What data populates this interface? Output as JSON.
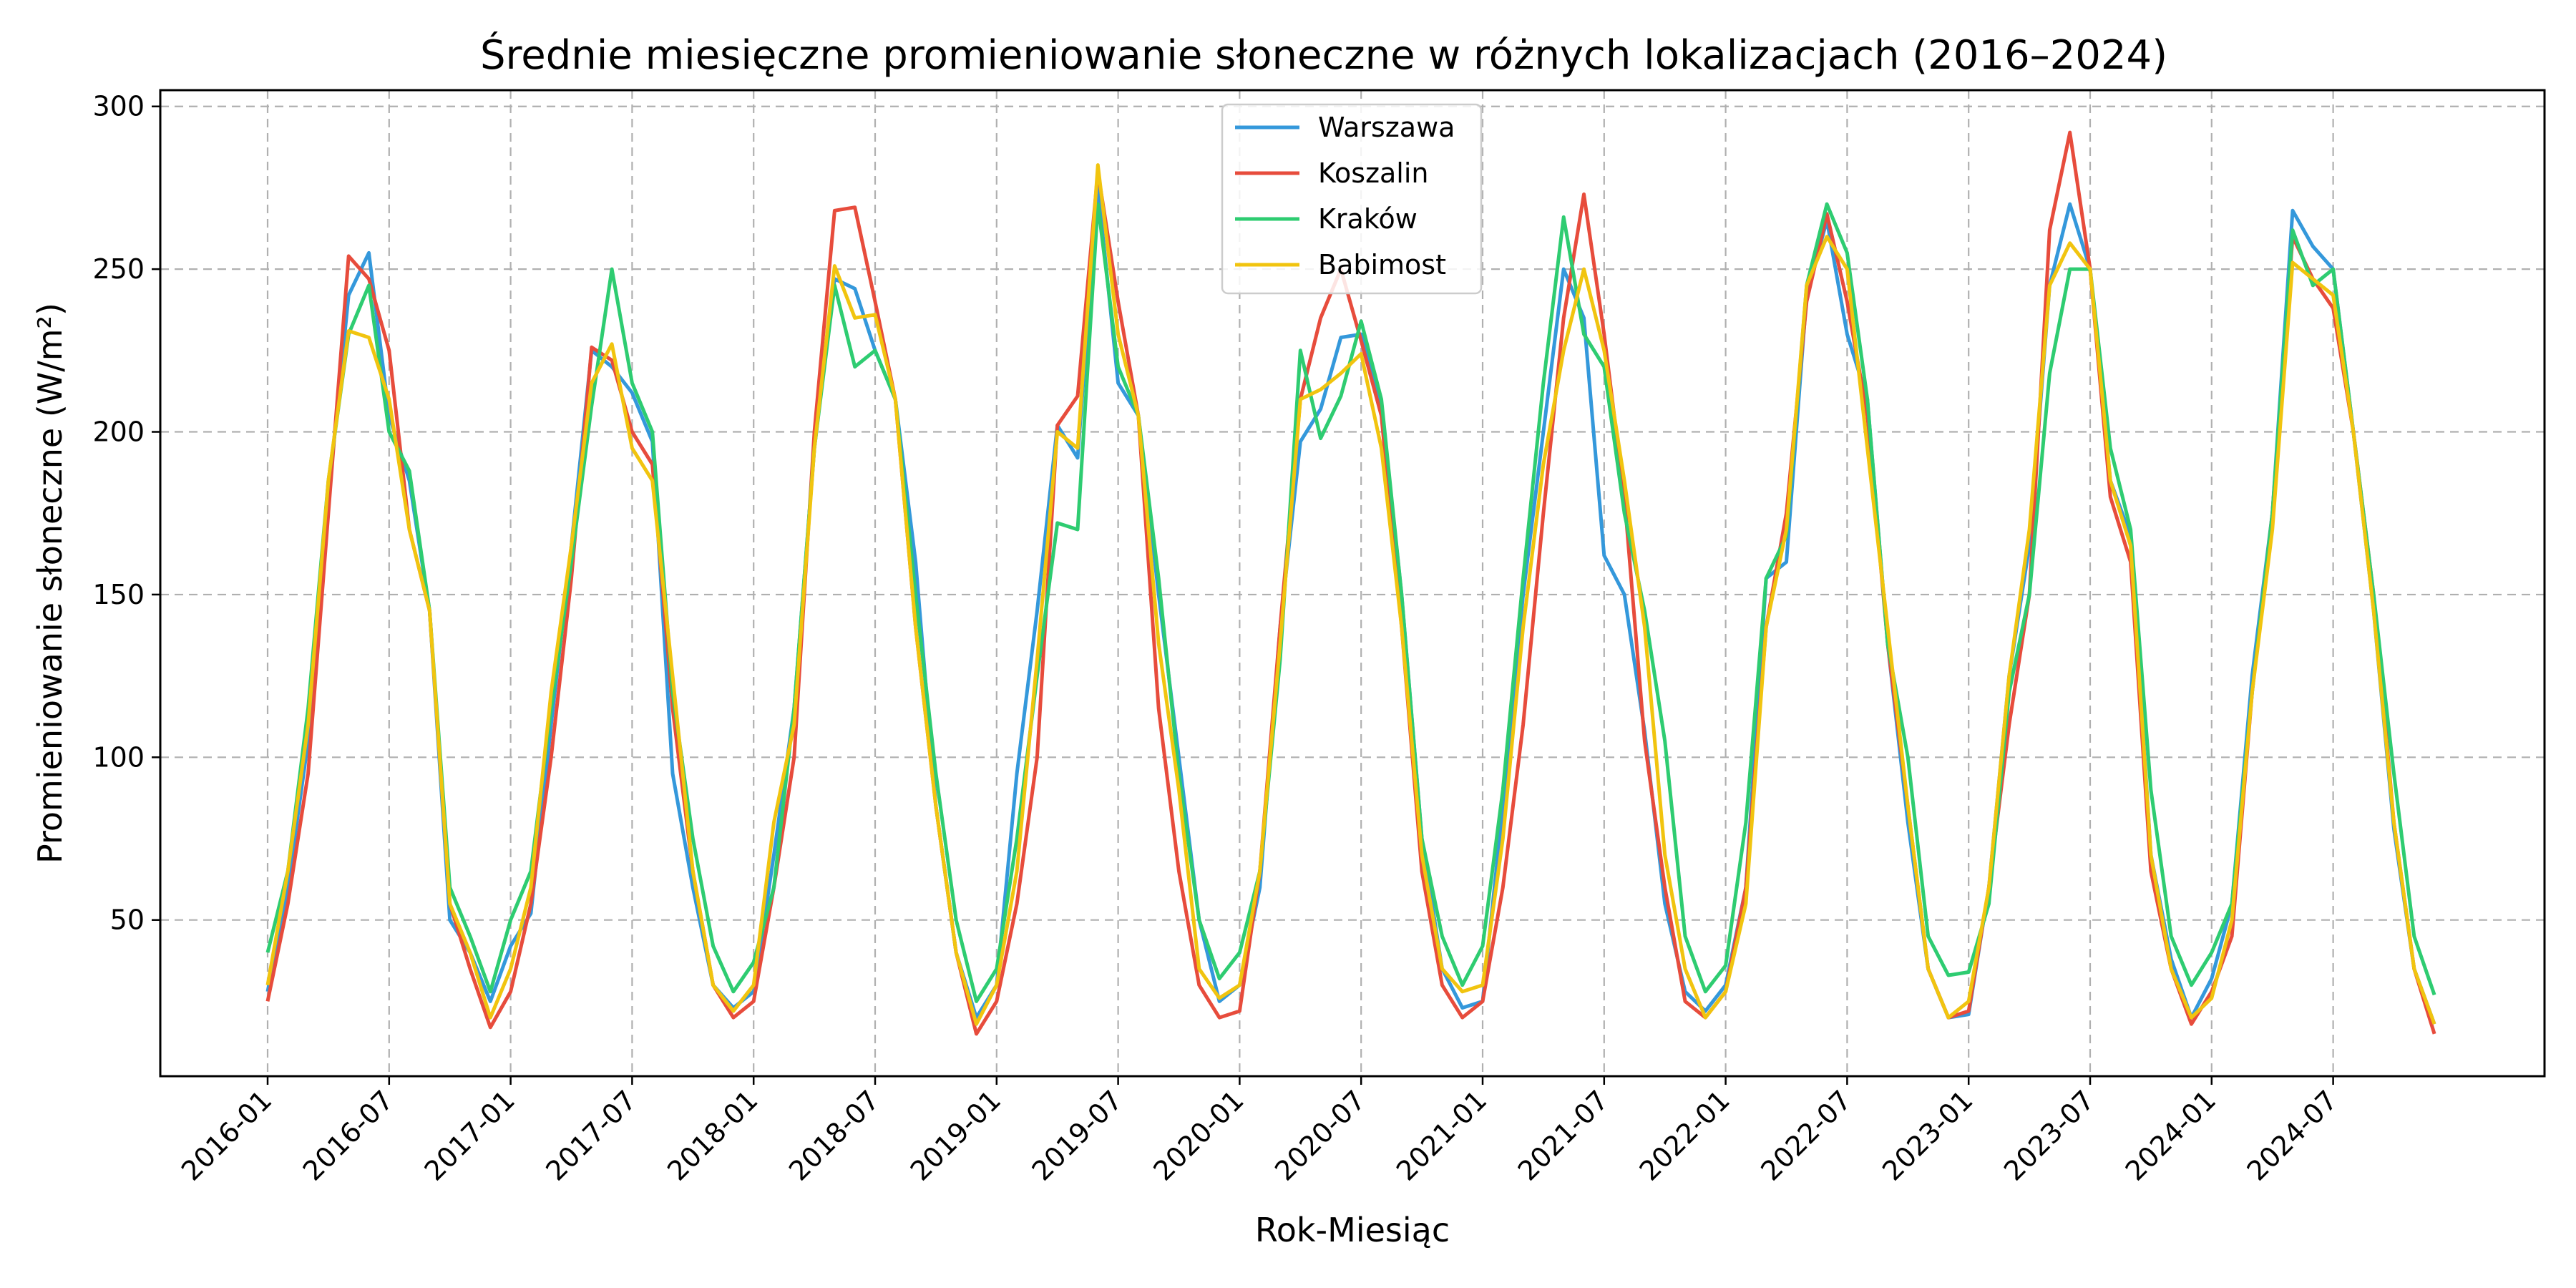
{
  "chart_data": {
    "type": "line",
    "title": "Średnie miesięczne promieniowanie słoneczne w różnych lokalizacjach (2016–2024)",
    "xlabel": "Rok-Miesiąc",
    "ylabel": "Promieniowanie słoneczne (W/m²)",
    "x_start": "2016-01",
    "x_tick_labels": [
      "2016-01",
      "2016-07",
      "2017-01",
      "2017-07",
      "2018-01",
      "2018-07",
      "2019-01",
      "2019-07",
      "2020-01",
      "2020-07",
      "2021-01",
      "2021-07",
      "2022-01",
      "2022-07",
      "2023-01",
      "2023-07",
      "2024-01",
      "2024-07"
    ],
    "y_ticks": [
      50,
      100,
      150,
      200,
      250,
      300
    ],
    "ylim": [
      2,
      305
    ],
    "grid": true,
    "legend_position": "top-center",
    "series": [
      {
        "name": "Warszawa",
        "color": "#3498db",
        "values": [
          28,
          60,
          105,
          180,
          242,
          255,
          205,
          185,
          145,
          50,
          40,
          25,
          42,
          52,
          110,
          165,
          225,
          220,
          212,
          197,
          95,
          60,
          30,
          23,
          28,
          70,
          115,
          195,
          247,
          244,
          225,
          210,
          160,
          85,
          40,
          20,
          30,
          95,
          145,
          202,
          192,
          275,
          215,
          205,
          150,
          100,
          50,
          25,
          30,
          60,
          140,
          197,
          207,
          229,
          230,
          208,
          150,
          75,
          35,
          23,
          25,
          85,
          150,
          200,
          250,
          235,
          162,
          150,
          108,
          55,
          28,
          22,
          30,
          60,
          155,
          160,
          242,
          265,
          230,
          210,
          135,
          80,
          35,
          20,
          21,
          60,
          125,
          165,
          245,
          270,
          250,
          185,
          168,
          70,
          38,
          20,
          32,
          55,
          125,
          175,
          268,
          257,
          250,
          200,
          145,
          78,
          35,
          18
        ]
      },
      {
        "name": "Koszalin",
        "color": "#e74c3c",
        "values": [
          25,
          55,
          95,
          175,
          254,
          247,
          225,
          170,
          145,
          55,
          35,
          17,
          28,
          55,
          100,
          155,
          226,
          222,
          200,
          190,
          115,
          65,
          30,
          20,
          25,
          60,
          100,
          200,
          268,
          269,
          240,
          210,
          140,
          85,
          40,
          15,
          25,
          55,
          100,
          202,
          211,
          280,
          240,
          205,
          115,
          65,
          30,
          20,
          22,
          65,
          140,
          210,
          235,
          250,
          228,
          205,
          140,
          65,
          30,
          20,
          25,
          60,
          110,
          175,
          235,
          273,
          230,
          180,
          105,
          60,
          25,
          20,
          28,
          60,
          140,
          175,
          240,
          267,
          240,
          205,
          135,
          85,
          35,
          20,
          22,
          60,
          110,
          150,
          262,
          292,
          250,
          180,
          160,
          65,
          35,
          18,
          28,
          45,
          120,
          175,
          260,
          247,
          238,
          200,
          150,
          80,
          35,
          15
        ]
      },
      {
        "name": "Kraków",
        "color": "#2ecc71",
        "values": [
          40,
          65,
          115,
          185,
          230,
          245,
          200,
          188,
          145,
          60,
          45,
          28,
          50,
          65,
          115,
          160,
          208,
          250,
          215,
          200,
          120,
          75,
          42,
          28,
          37,
          60,
          115,
          195,
          245,
          220,
          225,
          210,
          150,
          95,
          50,
          25,
          35,
          75,
          125,
          172,
          170,
          270,
          220,
          205,
          155,
          95,
          50,
          32,
          40,
          65,
          130,
          225,
          198,
          211,
          234,
          210,
          150,
          75,
          45,
          30,
          42,
          90,
          155,
          215,
          266,
          230,
          220,
          175,
          145,
          105,
          45,
          28,
          36,
          80,
          155,
          168,
          245,
          270,
          255,
          210,
          135,
          100,
          45,
          33,
          34,
          55,
          120,
          150,
          218,
          250,
          250,
          195,
          170,
          90,
          45,
          30,
          40,
          55,
          120,
          175,
          262,
          245,
          250,
          200,
          150,
          95,
          45,
          27
        ]
      },
      {
        "name": "Babimost",
        "color": "#f1c40f",
        "values": [
          30,
          65,
          110,
          185,
          231,
          229,
          210,
          170,
          145,
          55,
          40,
          20,
          35,
          60,
          120,
          165,
          215,
          227,
          195,
          185,
          125,
          65,
          30,
          22,
          30,
          80,
          110,
          195,
          251,
          235,
          236,
          210,
          140,
          85,
          40,
          18,
          30,
          65,
          130,
          200,
          195,
          282,
          230,
          205,
          135,
          90,
          35,
          26,
          30,
          65,
          135,
          210,
          213,
          218,
          224,
          195,
          140,
          70,
          35,
          28,
          30,
          75,
          140,
          190,
          225,
          250,
          225,
          185,
          140,
          70,
          35,
          20,
          28,
          55,
          140,
          170,
          245,
          260,
          250,
          195,
          140,
          85,
          35,
          20,
          25,
          60,
          125,
          170,
          245,
          258,
          250,
          185,
          165,
          70,
          35,
          20,
          26,
          50,
          120,
          170,
          252,
          247,
          242,
          200,
          145,
          80,
          35,
          18
        ]
      }
    ]
  }
}
